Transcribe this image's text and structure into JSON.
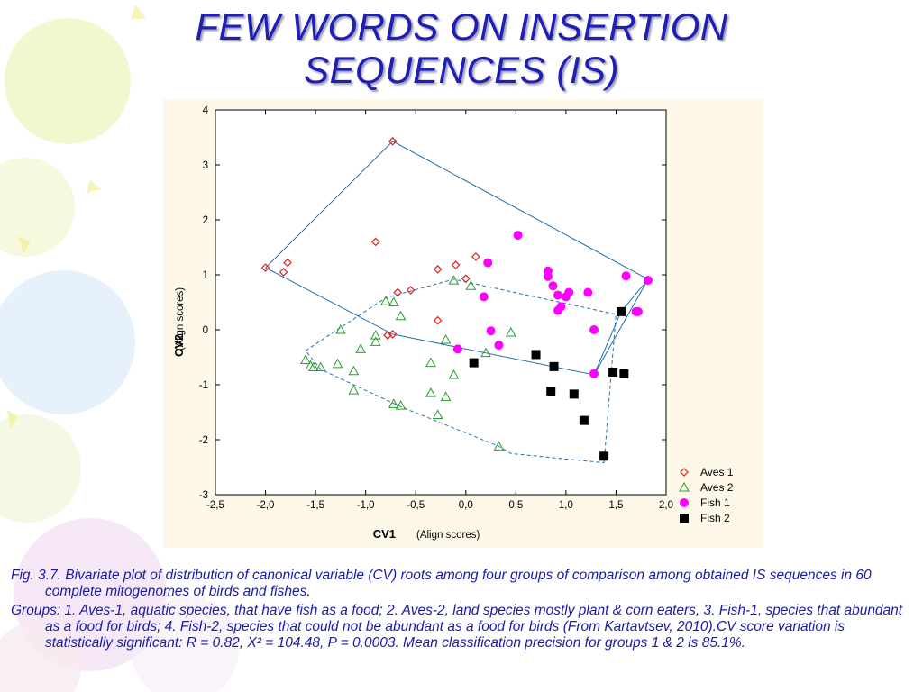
{
  "slide": {
    "title_line1": "FEW WORDS ON INSERTION",
    "title_line2": "SEQUENCES (IS)"
  },
  "caption": {
    "figure": "Fig. 3.7. Bivariate plot of distribution of canonical variable (CV) roots among four groups of comparison among obtained IS sequences in 60 complete mitogenomes of birds and fishes.",
    "groups": "Groups: 1. Aves-1, aquatic species, that have fish as a food; 2. Aves-2, land species mostly plant & corn eaters, 3. Fish-1, species that abundant as a food for birds; 4. Fish-2, species that could not be abundant as a food for birds (From Kartavtsev, 2010).CV score variation is statistically significant: R = 0.82, X² = 104.48, P = 0.0003. Mean classification precision for groups 1 & 2 is 85.1%."
  },
  "colors": {
    "title": "#1f1fb5",
    "caption": "#1a1aa8",
    "aves1": "#e02020",
    "aves2": "#2e9a2e",
    "fish1": "#ff00ff",
    "fish2": "#000000",
    "hull": "#2070b0",
    "panel": "#fdf8e8"
  },
  "chart_data": {
    "type": "scatter",
    "xlabel": "CV1",
    "xlabel_sub": "(Align scores)",
    "ylabel": "CV2",
    "ylabel_sub": "(Align scores)",
    "xlim": [
      -2.5,
      2.0
    ],
    "ylim": [
      -3,
      4
    ],
    "x_ticks": [
      -2.5,
      -2.0,
      -1.5,
      -1.0,
      -0.5,
      0.0,
      0.5,
      1.0,
      1.5,
      2.0
    ],
    "x_tick_labels": [
      "-2,5",
      "-2,0",
      "-1,5",
      "-1,0",
      "-0,5",
      "0,0",
      "0,5",
      "1,0",
      "1,5",
      "2,0"
    ],
    "y_ticks": [
      -3,
      -2,
      -1,
      0,
      1,
      2,
      3,
      4
    ],
    "y_tick_labels": [
      "-3",
      "-2",
      "-1",
      "0",
      "1",
      "2",
      "3",
      "4"
    ],
    "legend_position": "bottom-right",
    "series": [
      {
        "name": "Aves 1",
        "marker": "diamond",
        "color": "#e02020",
        "hull_style": "solid",
        "points": [
          [
            -2.0,
            1.13
          ],
          [
            -1.82,
            1.05
          ],
          [
            -1.78,
            1.22
          ],
          [
            -0.73,
            3.43
          ],
          [
            -0.9,
            1.6
          ],
          [
            -0.68,
            0.68
          ],
          [
            -0.55,
            0.72
          ],
          [
            -0.28,
            1.1
          ],
          [
            -0.1,
            1.18
          ],
          [
            0.0,
            0.93
          ],
          [
            0.1,
            1.33
          ],
          [
            -0.78,
            -0.1
          ],
          [
            -0.73,
            -0.08
          ],
          [
            -0.28,
            0.17
          ]
        ],
        "hull": [
          [
            -2.0,
            1.13
          ],
          [
            -0.73,
            3.43
          ],
          [
            1.82,
            0.92
          ],
          [
            1.28,
            -0.82
          ],
          [
            -0.73,
            -0.08
          ],
          [
            -2.0,
            1.13
          ]
        ]
      },
      {
        "name": "Aves 2",
        "marker": "triangle",
        "color": "#2e9a2e",
        "hull_style": "dashed",
        "points": [
          [
            -1.6,
            -0.55
          ],
          [
            -1.55,
            -0.65
          ],
          [
            -1.52,
            -0.68
          ],
          [
            -1.45,
            -0.68
          ],
          [
            -1.28,
            -0.62
          ],
          [
            -1.12,
            -0.75
          ],
          [
            -1.12,
            -1.1
          ],
          [
            -1.05,
            -0.35
          ],
          [
            -0.9,
            -0.22
          ],
          [
            -0.9,
            -0.1
          ],
          [
            -0.8,
            0.52
          ],
          [
            -0.72,
            0.5
          ],
          [
            -0.65,
            0.25
          ],
          [
            -0.72,
            -1.35
          ],
          [
            -0.65,
            -1.38
          ],
          [
            -0.35,
            -0.6
          ],
          [
            -0.35,
            -1.15
          ],
          [
            -0.28,
            -1.55
          ],
          [
            -0.2,
            -1.22
          ],
          [
            -0.2,
            -0.18
          ],
          [
            -0.12,
            -0.82
          ],
          [
            -0.12,
            0.9
          ],
          [
            0.05,
            0.8
          ],
          [
            0.2,
            -0.42
          ],
          [
            0.45,
            -0.05
          ],
          [
            -1.25,
            0.0
          ],
          [
            0.33,
            -2.12
          ]
        ],
        "hull": [
          [
            -1.6,
            -0.38
          ],
          [
            -0.8,
            0.58
          ],
          [
            -0.12,
            0.92
          ],
          [
            1.5,
            0.28
          ],
          [
            1.38,
            -2.42
          ],
          [
            0.45,
            -2.25
          ],
          [
            0.33,
            -2.12
          ],
          [
            -0.65,
            -1.4
          ],
          [
            -1.45,
            -0.72
          ],
          [
            -1.6,
            -0.38
          ]
        ]
      },
      {
        "name": "Fish 1",
        "marker": "circle",
        "color": "#ff00ff",
        "points": [
          [
            0.52,
            1.72
          ],
          [
            0.22,
            1.22
          ],
          [
            0.18,
            0.6
          ],
          [
            0.25,
            -0.02
          ],
          [
            0.33,
            -0.28
          ],
          [
            -0.08,
            -0.35
          ],
          [
            0.82,
            1.07
          ],
          [
            0.82,
            0.97
          ],
          [
            0.87,
            0.8
          ],
          [
            0.92,
            0.63
          ],
          [
            0.92,
            0.35
          ],
          [
            0.95,
            0.42
          ],
          [
            1.0,
            0.6
          ],
          [
            1.03,
            0.68
          ],
          [
            1.22,
            0.68
          ],
          [
            1.6,
            0.98
          ],
          [
            1.72,
            0.33
          ],
          [
            1.82,
            0.9
          ],
          [
            1.28,
            0.0
          ],
          [
            1.28,
            -0.8
          ],
          [
            1.7,
            0.33
          ]
        ]
      },
      {
        "name": "Fish 2",
        "marker": "square",
        "color": "#000000",
        "hull_style": "solid",
        "points": [
          [
            0.08,
            -0.6
          ],
          [
            0.7,
            -0.45
          ],
          [
            0.88,
            -0.67
          ],
          [
            0.85,
            -1.12
          ],
          [
            1.08,
            -1.17
          ],
          [
            1.18,
            -1.65
          ],
          [
            1.38,
            -2.3
          ],
          [
            1.47,
            -0.77
          ],
          [
            1.58,
            -0.8
          ],
          [
            1.55,
            0.33
          ]
        ],
        "hull": [
          [
            1.28,
            -0.82
          ],
          [
            1.55,
            0.33
          ],
          [
            1.82,
            0.92
          ]
        ]
      }
    ]
  }
}
